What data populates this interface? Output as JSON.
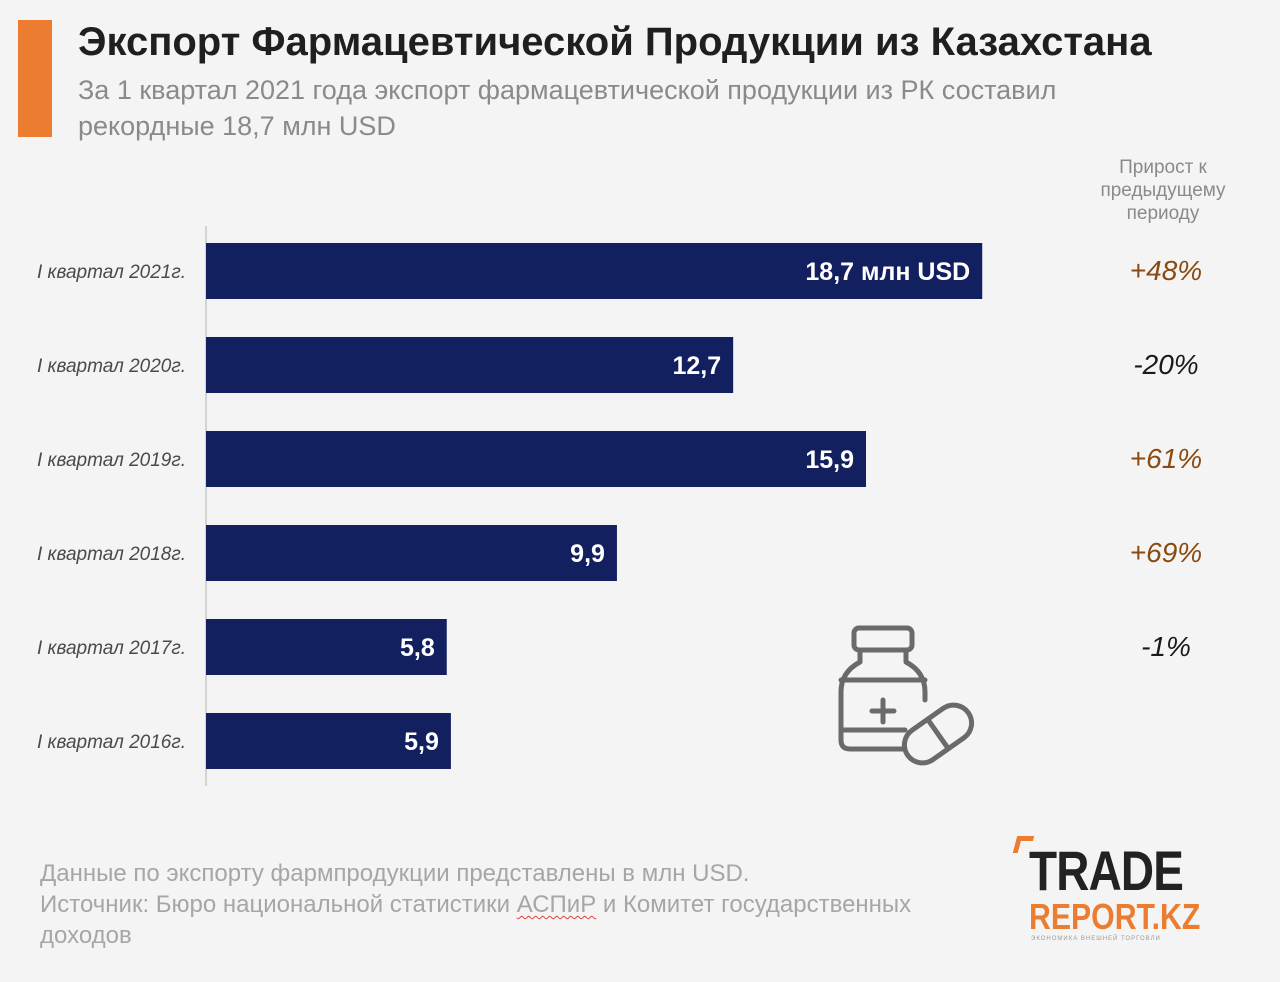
{
  "header": {
    "title": "Экспорт Фармацевтической Продукции из Казахстана",
    "subtitle_line1": "За 1 квартал 2021 года экспорт фармацевтической продукции из РК составил",
    "subtitle_line2": "рекордные 18,7 млн USD"
  },
  "growth_header": [
    "Прирост к",
    "предыдущему",
    "периоду"
  ],
  "colors": {
    "accent": "#ec7d30",
    "bar": "#132060",
    "positive": "#8a4a10",
    "negative": "#1a1a1a"
  },
  "chart_data": {
    "type": "bar",
    "orientation": "horizontal",
    "title": "Экспорт Фармацевтической Продукции из Казахстана",
    "unit": "млн USD",
    "xlim": [
      0,
      21.2
    ],
    "categories": [
      "I квартал 2021г.",
      "I квартал 2020г.",
      "I квартал 2019г.",
      "I квартал 2018г.",
      "I квартал 2017г.",
      "I квартал 2016г."
    ],
    "values": [
      18.7,
      12.7,
      15.9,
      9.9,
      5.8,
      5.9
    ],
    "value_labels": [
      "18,7 млн USD",
      "12,7",
      "15,9",
      "9,9",
      "5,8",
      "5,9"
    ],
    "growth": [
      "+48%",
      "-20%",
      "+61%",
      "+69%",
      "-1%",
      ""
    ],
    "growth_column_title": "Прирост к предыдущему периоду"
  },
  "footnote": {
    "line1": "Данные по экспорту фармпродукции представлены в млн USD.",
    "line2_pre": "Источник: Бюро национальной статистики ",
    "line2_wavy": "АСПиР",
    "line2_post": " и Комитет государственных",
    "line3": "доходов"
  },
  "logo": {
    "top": "TRADE",
    "bottom": "REPORT.KZ",
    "tagline": "ЭКОНОМИКА ВНЕШНЕЙ ТОРГОВЛИ"
  },
  "icons": [
    "pill-bottle-icon"
  ]
}
